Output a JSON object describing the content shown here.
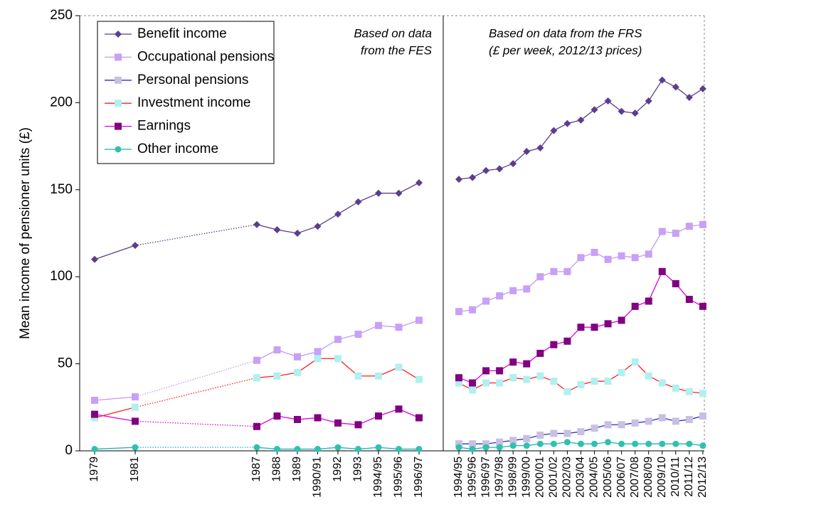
{
  "chart_data": {
    "type": "line",
    "y_label": "Mean income of pensioner units (£)",
    "annotations": [
      [
        "Based on data",
        "from the FES"
      ],
      [
        "Based on data from the FRS",
        "(£ per week, 2012/13 prices)"
      ]
    ],
    "categories": [
      "1979",
      "1981",
      "1987",
      "1988",
      "1989",
      "1990/91",
      "1992",
      "1993",
      "1994/95",
      "1995/96",
      "1996/97",
      "1994/95",
      "1995/96",
      "1996/97",
      "1997/98",
      "1998/99",
      "1999/00",
      "2000/01",
      "2001/02",
      "2002/03",
      "2003/04",
      "2004/05",
      "2005/06",
      "2006/07",
      "2007/08",
      "2008/09",
      "2009/10",
      "2010/11",
      "2011/12",
      "2012/13"
    ],
    "ylim": [
      0,
      250
    ],
    "yticks": [
      0,
      50,
      100,
      150,
      200,
      250
    ],
    "legend": "top-left",
    "series": [
      {
        "name": "Benefit income",
        "color": "#5b3d8f",
        "marker_color": "#5b3d8f",
        "marker": "diamond",
        "values": [
          110,
          118,
          130,
          127,
          125,
          129,
          136,
          143,
          148,
          148,
          154,
          156,
          157,
          161,
          162,
          165,
          172,
          174,
          184,
          188,
          190,
          196,
          201,
          195,
          194,
          201,
          213,
          209,
          203,
          208
        ]
      },
      {
        "name": "Occupational pensions",
        "color": "#c599f0",
        "marker_color": "#c8a0f5",
        "marker": "square",
        "values": [
          29,
          31,
          52,
          58,
          54,
          57,
          64,
          67,
          72,
          71,
          75,
          80,
          81,
          86,
          89,
          92,
          93,
          100,
          103,
          103,
          111,
          114,
          110,
          112,
          111,
          113,
          126,
          125,
          129,
          130
        ]
      },
      {
        "name": "Personal pensions",
        "color": "#2a2ad0",
        "marker_color": "#c9c0e0",
        "marker": "square",
        "values": [
          null,
          null,
          null,
          null,
          null,
          null,
          null,
          null,
          null,
          null,
          null,
          4,
          4,
          4,
          5,
          6,
          7,
          9,
          10,
          10,
          11,
          13,
          15,
          15,
          16,
          17,
          19,
          17,
          18,
          20
        ]
      },
      {
        "name": "Investment income",
        "color": "#ff2020",
        "marker_color": "#b0f0f0",
        "marker": "square",
        "values": [
          19,
          25,
          42,
          43,
          45,
          53,
          53,
          43,
          43,
          48,
          41,
          39,
          35,
          39,
          39,
          42,
          41,
          43,
          40,
          34,
          38,
          40,
          40,
          45,
          51,
          43,
          39,
          36,
          34,
          33
        ]
      },
      {
        "name": "Earnings",
        "color": "#e000e0",
        "marker_color": "#800080",
        "marker": "square",
        "values": [
          21,
          17,
          14,
          20,
          18,
          19,
          16,
          15,
          20,
          24,
          19,
          42,
          39,
          46,
          46,
          51,
          50,
          56,
          61,
          63,
          71,
          71,
          73,
          75,
          83,
          86,
          103,
          96,
          87,
          83
        ]
      },
      {
        "name": "Other income",
        "color": "#20b0b0",
        "marker_color": "#30c0b0",
        "marker": "circle",
        "values": [
          1,
          2,
          2,
          1,
          1,
          1,
          2,
          1,
          2,
          1,
          1,
          2,
          1,
          2,
          2,
          3,
          3,
          4,
          4,
          5,
          4,
          4,
          5,
          4,
          4,
          4,
          4,
          4,
          4,
          3
        ]
      }
    ]
  }
}
